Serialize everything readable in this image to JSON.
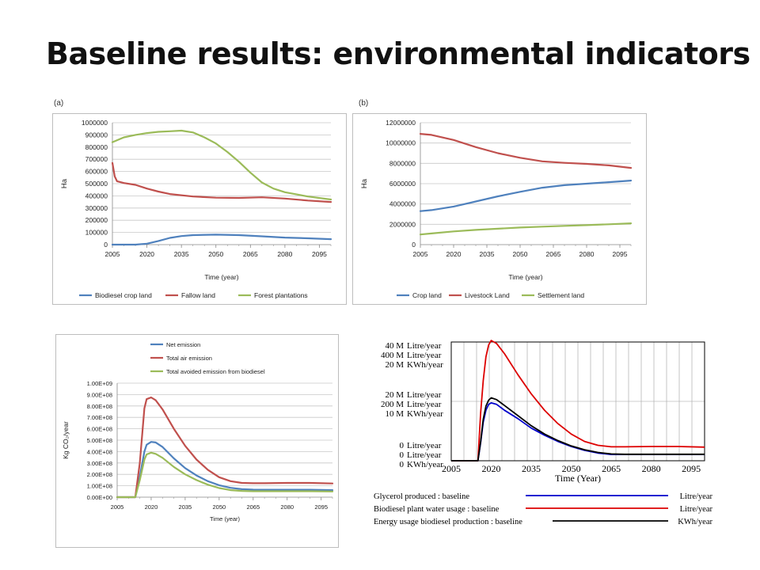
{
  "page": {
    "title": "Baseline results: environmental indicators"
  },
  "chart_data": [
    {
      "id": "a",
      "panel_label": "(a)",
      "type": "line",
      "xlabel": "Time (year)",
      "ylabel": "Ha",
      "xticks": [
        "2005",
        "2020",
        "2035",
        "2050",
        "2065",
        "2080",
        "2095"
      ],
      "xlim": [
        2005,
        2100
      ],
      "ylim": [
        0,
        1000000
      ],
      "yticks": [
        "0",
        "100000",
        "200000",
        "300000",
        "400000",
        "500000",
        "600000",
        "700000",
        "800000",
        "900000",
        "1000000"
      ],
      "grid": true,
      "legend": "bottom",
      "series": [
        {
          "name": "Biodiesel crop land",
          "color": "#4f81bd",
          "x": [
            2005,
            2015,
            2020,
            2025,
            2030,
            2035,
            2040,
            2050,
            2060,
            2070,
            2080,
            2090,
            2100
          ],
          "y": [
            0,
            0,
            8000,
            30000,
            55000,
            70000,
            78000,
            82000,
            78000,
            68000,
            58000,
            52000,
            45000
          ]
        },
        {
          "name": "Fallow land",
          "color": "#c0504d",
          "x": [
            2005,
            2006,
            2007,
            2010,
            2015,
            2020,
            2025,
            2030,
            2040,
            2050,
            2060,
            2070,
            2080,
            2090,
            2100
          ],
          "y": [
            670000,
            560000,
            520000,
            505000,
            490000,
            460000,
            435000,
            415000,
            395000,
            385000,
            383000,
            388000,
            378000,
            362000,
            350000
          ]
        },
        {
          "name": "Forest plantations",
          "color": "#9bbb59",
          "x": [
            2005,
            2010,
            2015,
            2020,
            2025,
            2030,
            2035,
            2040,
            2045,
            2050,
            2055,
            2060,
            2065,
            2070,
            2075,
            2080,
            2090,
            2100
          ],
          "y": [
            840000,
            880000,
            900000,
            915000,
            925000,
            930000,
            935000,
            920000,
            880000,
            830000,
            760000,
            680000,
            590000,
            510000,
            460000,
            430000,
            395000,
            370000
          ]
        }
      ]
    },
    {
      "id": "b",
      "panel_label": "(b)",
      "type": "line",
      "xlabel": "Time (year)",
      "ylabel": "Ha",
      "xticks": [
        "2005",
        "2020",
        "2035",
        "2050",
        "2065",
        "2080",
        "2095"
      ],
      "xlim": [
        2005,
        2100
      ],
      "ylim": [
        0,
        12000000
      ],
      "yticks": [
        "0",
        "2000000",
        "4000000",
        "6000000",
        "8000000",
        "10000000",
        "12000000"
      ],
      "grid": true,
      "legend": "bottom",
      "series": [
        {
          "name": "Crop land",
          "color": "#4f81bd",
          "x": [
            2005,
            2010,
            2020,
            2030,
            2040,
            2050,
            2060,
            2070,
            2080,
            2090,
            2100
          ],
          "y": [
            3300000,
            3400000,
            3750000,
            4250000,
            4750000,
            5200000,
            5600000,
            5850000,
            6000000,
            6150000,
            6300000
          ]
        },
        {
          "name": "Livestock Land",
          "color": "#c0504d",
          "x": [
            2005,
            2010,
            2020,
            2030,
            2040,
            2050,
            2060,
            2070,
            2080,
            2090,
            2100
          ],
          "y": [
            10900000,
            10800000,
            10300000,
            9600000,
            9000000,
            8550000,
            8200000,
            8050000,
            7950000,
            7800000,
            7550000
          ]
        },
        {
          "name": "Settlement land",
          "color": "#9bbb59",
          "x": [
            2005,
            2010,
            2020,
            2030,
            2040,
            2050,
            2060,
            2070,
            2080,
            2090,
            2100
          ],
          "y": [
            1000000,
            1100000,
            1300000,
            1450000,
            1570000,
            1680000,
            1770000,
            1850000,
            1920000,
            2000000,
            2100000
          ]
        }
      ]
    },
    {
      "id": "c",
      "type": "line",
      "xlabel": "Time (year)",
      "ylabel": "Kg CO₂/year",
      "xticks": [
        "2005",
        "2020",
        "2035",
        "2050",
        "2065",
        "2080",
        "2095"
      ],
      "xlim": [
        2005,
        2100
      ],
      "ylim": [
        0,
        1000000000
      ],
      "yticks": [
        "0.00E+00",
        "1.00E+08",
        "2.00E+08",
        "3.00E+08",
        "4.00E+08",
        "5.00E+08",
        "6.00E+08",
        "7.00E+08",
        "8.00E+08",
        "9.00E+08",
        "1.00E+09"
      ],
      "grid": true,
      "legend": "top",
      "series": [
        {
          "name": "Net emission",
          "color": "#4f81bd",
          "x": [
            2005,
            2010,
            2013,
            2015,
            2017,
            2018,
            2020,
            2022,
            2025,
            2030,
            2035,
            2040,
            2045,
            2050,
            2055,
            2060,
            2065,
            2070,
            2080,
            2090,
            2100
          ],
          "y": [
            0,
            0,
            0,
            180000000,
            400000000,
            460000000,
            485000000,
            480000000,
            440000000,
            340000000,
            255000000,
            190000000,
            140000000,
            105000000,
            82000000,
            70000000,
            66000000,
            65000000,
            65000000,
            65000000,
            62000000
          ]
        },
        {
          "name": "Total air emission",
          "color": "#c0504d",
          "x": [
            2005,
            2010,
            2013,
            2015,
            2017,
            2018,
            2020,
            2022,
            2025,
            2030,
            2035,
            2040,
            2045,
            2050,
            2055,
            2060,
            2065,
            2070,
            2080,
            2090,
            2100
          ],
          "y": [
            0,
            0,
            0,
            300000000,
            780000000,
            860000000,
            875000000,
            850000000,
            770000000,
            600000000,
            450000000,
            330000000,
            240000000,
            175000000,
            140000000,
            125000000,
            122000000,
            122000000,
            125000000,
            125000000,
            120000000
          ]
        },
        {
          "name": "Total avoided emission from biodiesel",
          "color": "#9bbb59",
          "x": [
            2005,
            2010,
            2013,
            2015,
            2017,
            2018,
            2020,
            2022,
            2025,
            2030,
            2035,
            2040,
            2045,
            2050,
            2055,
            2060,
            2065,
            2070,
            2080,
            2090,
            2100
          ],
          "y": [
            0,
            0,
            0,
            150000000,
            330000000,
            375000000,
            390000000,
            380000000,
            345000000,
            265000000,
            200000000,
            150000000,
            110000000,
            80000000,
            62000000,
            55000000,
            52000000,
            52000000,
            52000000,
            52000000,
            50000000
          ]
        }
      ]
    },
    {
      "id": "d",
      "type": "line",
      "xlabel": "Time (Year)",
      "xticks": [
        "2005",
        "2020",
        "2035",
        "2050",
        "2065",
        "2080",
        "2095"
      ],
      "xlim": [
        2005,
        2100
      ],
      "grid": true,
      "axes": [
        {
          "max": "40 M",
          "mid": "20 M",
          "min": "0",
          "unit": "Litre/year"
        },
        {
          "max": "400 M",
          "mid": "200 M",
          "min": "0",
          "unit": "Litre/year"
        },
        {
          "max": "20 M",
          "mid": "10 M",
          "min": "0",
          "unit": "KWh/year"
        }
      ],
      "series": [
        {
          "name": "Glycerol produced : baseline",
          "unit": "Litre/year",
          "color": "#0000cc",
          "x": [
            2005,
            2010,
            2013,
            2014,
            2015,
            2016,
            2017,
            2018,
            2019,
            2020,
            2022,
            2025,
            2030,
            2035,
            2040,
            2045,
            2050,
            2055,
            2060,
            2065,
            2070,
            2080,
            2090,
            2100
          ],
          "y": [
            0,
            0,
            0,
            0,
            0,
            6,
            13,
            17,
            19,
            19.5,
            19,
            17,
            14.2,
            11,
            8.6,
            6.5,
            4.8,
            3.5,
            2.6,
            2.1,
            2.1,
            2.1,
            2.1,
            2.1
          ]
        },
        {
          "name": "Biodiesel plant water usage : baseline",
          "unit": "Litre/year",
          "color": "#dd0000",
          "x": [
            2005,
            2010,
            2013,
            2014,
            2015,
            2016,
            2017,
            2018,
            2019,
            2020,
            2022,
            2025,
            2030,
            2035,
            2040,
            2045,
            2050,
            2055,
            2060,
            2065,
            2070,
            2080,
            2090,
            2100
          ],
          "y": [
            0,
            0,
            0,
            0,
            0,
            160,
            270,
            350,
            390,
            405,
            395,
            360,
            290,
            225,
            170,
            125,
            90,
            65,
            52,
            47,
            47,
            48,
            48,
            46
          ]
        },
        {
          "name": "Energy usage biodiesel production : baseline",
          "unit": "KWh/year",
          "color": "#000000",
          "x": [
            2005,
            2010,
            2013,
            2014,
            2015,
            2016,
            2017,
            2018,
            2019,
            2020,
            2022,
            2025,
            2030,
            2035,
            2040,
            2045,
            2050,
            2055,
            2060,
            2065,
            2070,
            2080,
            2090,
            2100
          ],
          "y": [
            0,
            0,
            0,
            0,
            0,
            3.2,
            7,
            9.2,
            10.2,
            10.6,
            10.3,
            9.3,
            7.6,
            5.9,
            4.5,
            3.4,
            2.5,
            1.85,
            1.4,
            1.15,
            1.1,
            1.1,
            1.1,
            1.1
          ]
        }
      ]
    }
  ]
}
